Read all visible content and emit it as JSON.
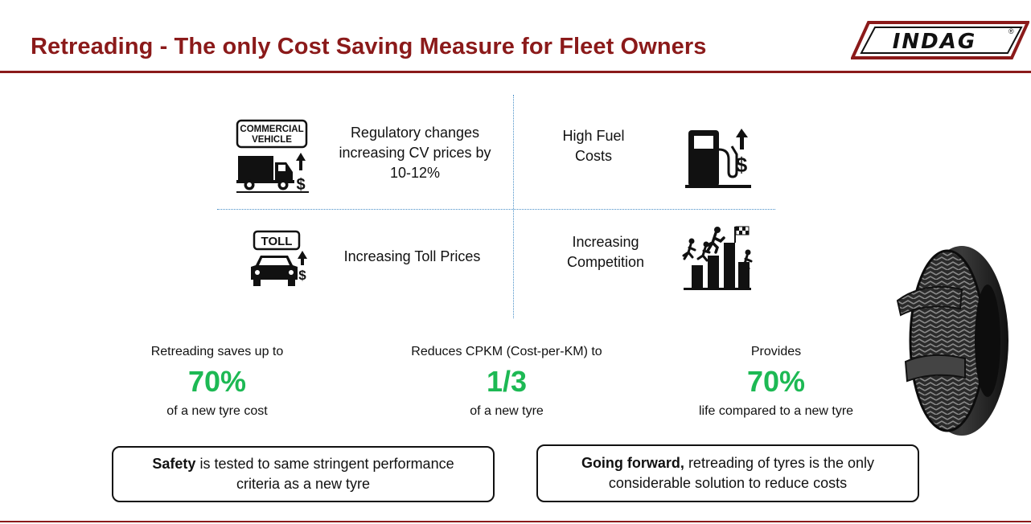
{
  "header": {
    "title": "Retreading - The only Cost Saving Measure for Fleet Owners",
    "logo_text": "INDAG",
    "logo_mark": "®"
  },
  "quadrants": [
    {
      "id": "cv-prices",
      "text_lines": [
        "Regulatory changes",
        "increasing CV prices by",
        "10-12%"
      ],
      "icon_label_lines": [
        "COMMERCIAL",
        "VEHICLE"
      ],
      "icon": "truck-price-up-icon"
    },
    {
      "id": "fuel-costs",
      "text_lines": [
        "High Fuel",
        "Costs"
      ],
      "icon": "fuel-pump-price-up-icon"
    },
    {
      "id": "toll-prices",
      "text_lines": [
        "Increasing Toll Prices"
      ],
      "icon_label_lines": [
        "TOLL"
      ],
      "icon": "car-toll-price-up-icon"
    },
    {
      "id": "competition",
      "text_lines": [
        "Increasing",
        "Competition"
      ],
      "icon": "runners-competition-icon"
    }
  ],
  "stats": [
    {
      "label_top": "Retreading saves up to",
      "value": "70%",
      "label_bottom": "of a new tyre cost"
    },
    {
      "label_top": "Reduces CPKM (Cost-per-KM) to",
      "value": "1/3",
      "label_bottom": "of a new tyre"
    },
    {
      "label_top": "Provides",
      "value": "70%",
      "label_bottom": "life compared to a new tyre"
    }
  ],
  "callouts": [
    {
      "bold": "Safety",
      "rest_line1": " is tested to same stringent performance",
      "line2": "criteria as a new tyre"
    },
    {
      "bold": "Going forward,",
      "rest_line1": " retreading of tyres is the only",
      "line2": "considerable solution to reduce costs"
    }
  ],
  "colors": {
    "brand": "#8b1a1a",
    "accent_green": "#1db954",
    "divider": "#4a90c8"
  },
  "image": {
    "icon": "retreaded-tyre-icon"
  }
}
